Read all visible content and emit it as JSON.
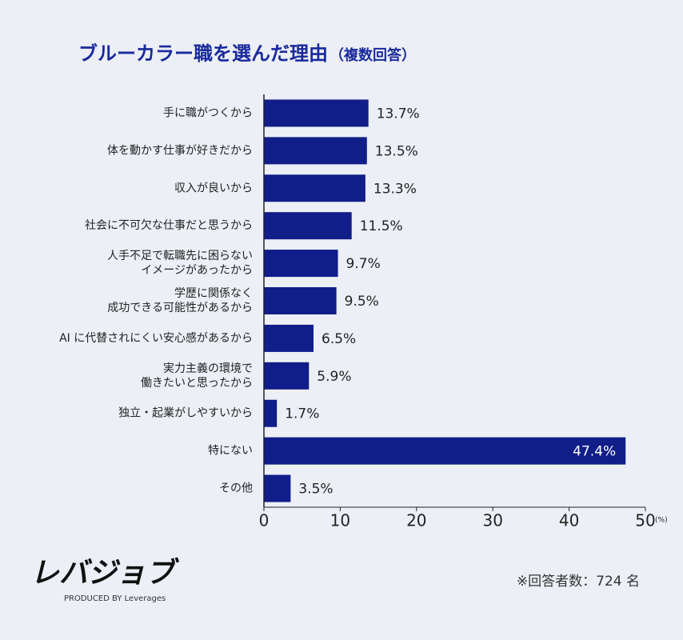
{
  "chart_data": {
    "type": "hbar",
    "title": "ブルーカラー職を選んだ理由",
    "subtitle": "（複数回答）",
    "categories": [
      "手に職がつくから",
      "体を動かす仕事が好きだから",
      "収入が良いから",
      "社会に不可欠な仕事だと思うから",
      [
        "人手不足で転職先に困らない",
        "イメージがあったから"
      ],
      [
        "学歴に関係なく",
        "成功できる可能性があるから"
      ],
      "AI に代替されにくい安心感があるから",
      [
        "実力主義の環境で",
        "働きたいと思ったから"
      ],
      "独立・起業がしやすいから",
      "特にない",
      "その他"
    ],
    "values": [
      13.7,
      13.5,
      13.3,
      11.5,
      9.7,
      9.5,
      6.5,
      5.9,
      1.7,
      47.4,
      3.5
    ],
    "value_labels": [
      "13.7%",
      "13.5%",
      "13.3%",
      "11.5%",
      "9.7%",
      "9.5%",
      "6.5%",
      "5.9%",
      "1.7%",
      "47.4%",
      "3.5%"
    ],
    "color": "#111d88",
    "xlim": [
      0,
      50
    ],
    "xticks": [
      0,
      10,
      20,
      30,
      40,
      50
    ],
    "x_unit": "(%)",
    "note": "※回答者数：724 名"
  },
  "brand": {
    "logo": "レバジョブ",
    "tagline": "PRODUCED BY Leverages"
  }
}
